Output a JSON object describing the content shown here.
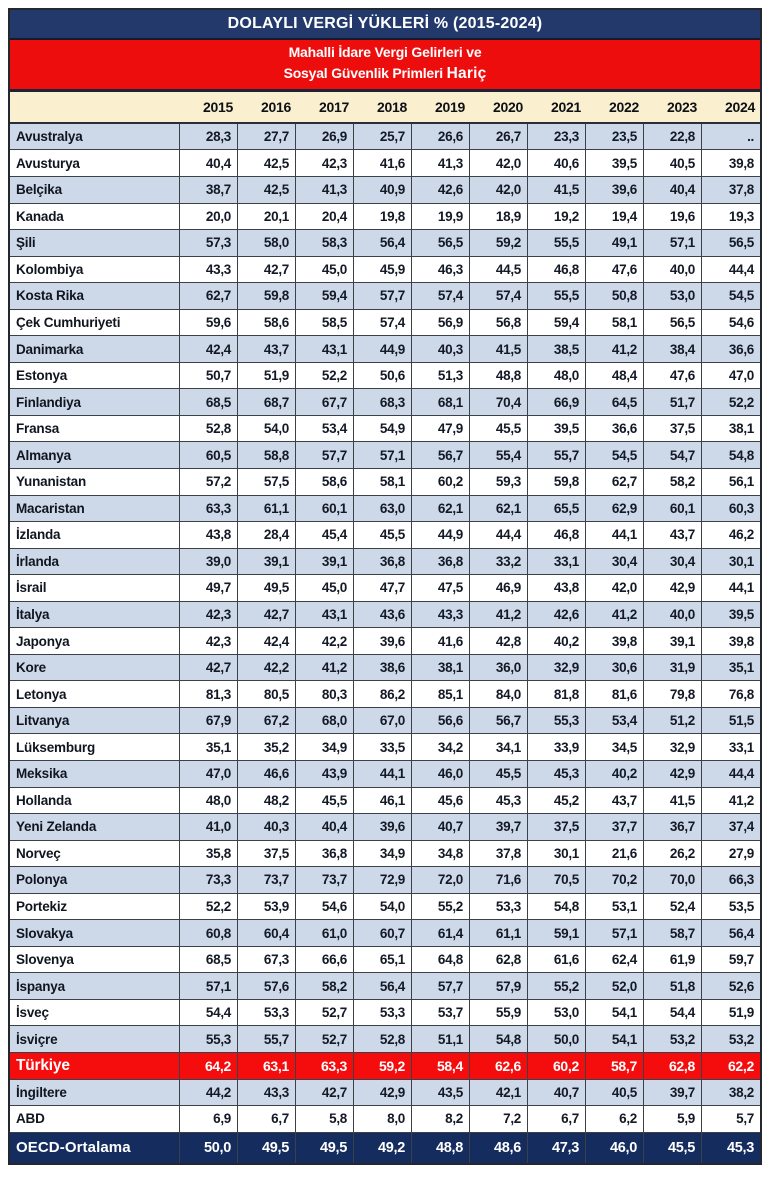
{
  "chart_data": {
    "type": "table",
    "title": "DOLAYLI VERGİ YÜKLERİ % (2015-2024)",
    "subtitle_line1": "Mahalli İdare Vergi Gelirleri ve",
    "subtitle_line2_prefix": "Sosyal Güvenlik Primleri",
    "subtitle_line2_emphasis": "Hariç",
    "columns": [
      "2015",
      "2016",
      "2017",
      "2018",
      "2019",
      "2020",
      "2021",
      "2022",
      "2023",
      "2024"
    ],
    "rows": [
      {
        "label": "Avustralya",
        "values": [
          "28,3",
          "27,7",
          "26,9",
          "25,7",
          "26,6",
          "26,7",
          "23,3",
          "23,5",
          "22,8",
          ".."
        ]
      },
      {
        "label": "Avusturya",
        "values": [
          "40,4",
          "42,5",
          "42,3",
          "41,6",
          "41,3",
          "42,0",
          "40,6",
          "39,5",
          "40,5",
          "39,8"
        ]
      },
      {
        "label": "Belçika",
        "values": [
          "38,7",
          "42,5",
          "41,3",
          "40,9",
          "42,6",
          "42,0",
          "41,5",
          "39,6",
          "40,4",
          "37,8"
        ]
      },
      {
        "label": "Kanada",
        "values": [
          "20,0",
          "20,1",
          "20,4",
          "19,8",
          "19,9",
          "18,9",
          "19,2",
          "19,4",
          "19,6",
          "19,3"
        ]
      },
      {
        "label": "Şili",
        "values": [
          "57,3",
          "58,0",
          "58,3",
          "56,4",
          "56,5",
          "59,2",
          "55,5",
          "49,1",
          "57,1",
          "56,5"
        ]
      },
      {
        "label": "Kolombiya",
        "values": [
          "43,3",
          "42,7",
          "45,0",
          "45,9",
          "46,3",
          "44,5",
          "46,8",
          "47,6",
          "40,0",
          "44,4"
        ]
      },
      {
        "label": "Kosta Rika",
        "values": [
          "62,7",
          "59,8",
          "59,4",
          "57,7",
          "57,4",
          "57,4",
          "55,5",
          "50,8",
          "53,0",
          "54,5"
        ]
      },
      {
        "label": "Çek Cumhuriyeti",
        "values": [
          "59,6",
          "58,6",
          "58,5",
          "57,4",
          "56,9",
          "56,8",
          "59,4",
          "58,1",
          "56,5",
          "54,6"
        ]
      },
      {
        "label": "Danimarka",
        "values": [
          "42,4",
          "43,7",
          "43,1",
          "44,9",
          "40,3",
          "41,5",
          "38,5",
          "41,2",
          "38,4",
          "36,6"
        ]
      },
      {
        "label": "Estonya",
        "values": [
          "50,7",
          "51,9",
          "52,2",
          "50,6",
          "51,3",
          "48,8",
          "48,0",
          "48,4",
          "47,6",
          "47,0"
        ]
      },
      {
        "label": "Finlandiya",
        "values": [
          "68,5",
          "68,7",
          "67,7",
          "68,3",
          "68,1",
          "70,4",
          "66,9",
          "64,5",
          "51,7",
          "52,2"
        ]
      },
      {
        "label": "Fransa",
        "values": [
          "52,8",
          "54,0",
          "53,4",
          "54,9",
          "47,9",
          "45,5",
          "39,5",
          "36,6",
          "37,5",
          "38,1"
        ]
      },
      {
        "label": "Almanya",
        "values": [
          "60,5",
          "58,8",
          "57,7",
          "57,1",
          "56,7",
          "55,4",
          "55,7",
          "54,5",
          "54,7",
          "54,8"
        ]
      },
      {
        "label": "Yunanistan",
        "values": [
          "57,2",
          "57,5",
          "58,6",
          "58,1",
          "60,2",
          "59,3",
          "59,8",
          "62,7",
          "58,2",
          "56,1"
        ]
      },
      {
        "label": "Macaristan",
        "values": [
          "63,3",
          "61,1",
          "60,1",
          "63,0",
          "62,1",
          "62,1",
          "65,5",
          "62,9",
          "60,1",
          "60,3"
        ]
      },
      {
        "label": "İzlanda",
        "values": [
          "43,8",
          "28,4",
          "45,4",
          "45,5",
          "44,9",
          "44,4",
          "46,8",
          "44,1",
          "43,7",
          "46,2"
        ]
      },
      {
        "label": "İrlanda",
        "values": [
          "39,0",
          "39,1",
          "39,1",
          "36,8",
          "36,8",
          "33,2",
          "33,1",
          "30,4",
          "30,4",
          "30,1"
        ]
      },
      {
        "label": "İsrail",
        "values": [
          "49,7",
          "49,5",
          "45,0",
          "47,7",
          "47,5",
          "46,9",
          "43,8",
          "42,0",
          "42,9",
          "44,1"
        ]
      },
      {
        "label": "İtalya",
        "values": [
          "42,3",
          "42,7",
          "43,1",
          "43,6",
          "43,3",
          "41,2",
          "42,6",
          "41,2",
          "40,0",
          "39,5"
        ]
      },
      {
        "label": "Japonya",
        "values": [
          "42,3",
          "42,4",
          "42,2",
          "39,6",
          "41,6",
          "42,8",
          "40,2",
          "39,8",
          "39,1",
          "39,8"
        ]
      },
      {
        "label": "Kore",
        "values": [
          "42,7",
          "42,2",
          "41,2",
          "38,6",
          "38,1",
          "36,0",
          "32,9",
          "30,6",
          "31,9",
          "35,1"
        ]
      },
      {
        "label": "Letonya",
        "values": [
          "81,3",
          "80,5",
          "80,3",
          "86,2",
          "85,1",
          "84,0",
          "81,8",
          "81,6",
          "79,8",
          "76,8"
        ]
      },
      {
        "label": "Litvanya",
        "values": [
          "67,9",
          "67,2",
          "68,0",
          "67,0",
          "56,6",
          "56,7",
          "55,3",
          "53,4",
          "51,2",
          "51,5"
        ]
      },
      {
        "label": "Lüksemburg",
        "values": [
          "35,1",
          "35,2",
          "34,9",
          "33,5",
          "34,2",
          "34,1",
          "33,9",
          "34,5",
          "32,9",
          "33,1"
        ]
      },
      {
        "label": "Meksika",
        "values": [
          "47,0",
          "46,6",
          "43,9",
          "44,1",
          "46,0",
          "45,5",
          "45,3",
          "40,2",
          "42,9",
          "44,4"
        ]
      },
      {
        "label": "Hollanda",
        "values": [
          "48,0",
          "48,2",
          "45,5",
          "46,1",
          "45,6",
          "45,3",
          "45,2",
          "43,7",
          "41,5",
          "41,2"
        ]
      },
      {
        "label": "Yeni Zelanda",
        "values": [
          "41,0",
          "40,3",
          "40,4",
          "39,6",
          "40,7",
          "39,7",
          "37,5",
          "37,7",
          "36,7",
          "37,4"
        ]
      },
      {
        "label": "Norveç",
        "values": [
          "35,8",
          "37,5",
          "36,8",
          "34,9",
          "34,8",
          "37,8",
          "30,1",
          "21,6",
          "26,2",
          "27,9"
        ]
      },
      {
        "label": "Polonya",
        "values": [
          "73,3",
          "73,7",
          "73,7",
          "72,9",
          "72,0",
          "71,6",
          "70,5",
          "70,2",
          "70,0",
          "66,3"
        ]
      },
      {
        "label": "Portekiz",
        "values": [
          "52,2",
          "53,9",
          "54,6",
          "54,0",
          "55,2",
          "53,3",
          "54,8",
          "53,1",
          "52,4",
          "53,5"
        ]
      },
      {
        "label": "Slovakya",
        "values": [
          "60,8",
          "60,4",
          "61,0",
          "60,7",
          "61,4",
          "61,1",
          "59,1",
          "57,1",
          "58,7",
          "56,4"
        ]
      },
      {
        "label": "Slovenya",
        "values": [
          "68,5",
          "67,3",
          "66,6",
          "65,1",
          "64,8",
          "62,8",
          "61,6",
          "62,4",
          "61,9",
          "59,7"
        ]
      },
      {
        "label": "İspanya",
        "values": [
          "57,1",
          "57,6",
          "58,2",
          "56,4",
          "57,7",
          "57,9",
          "55,2",
          "52,0",
          "51,8",
          "52,6"
        ]
      },
      {
        "label": "İsveç",
        "values": [
          "54,4",
          "53,3",
          "52,7",
          "53,3",
          "53,7",
          "55,9",
          "53,0",
          "54,1",
          "54,4",
          "51,9"
        ]
      },
      {
        "label": "İsviçre",
        "values": [
          "55,3",
          "55,7",
          "52,7",
          "52,8",
          "51,1",
          "54,8",
          "50,0",
          "54,1",
          "53,2",
          "53,2"
        ]
      },
      {
        "label": "Türkiye",
        "variant": "turkiye",
        "values": [
          "64,2",
          "63,1",
          "63,3",
          "59,2",
          "58,4",
          "62,6",
          "60,2",
          "58,7",
          "62,8",
          "62,2"
        ]
      },
      {
        "label": "İngiltere",
        "values": [
          "44,2",
          "43,3",
          "42,7",
          "42,9",
          "43,5",
          "42,1",
          "40,7",
          "40,5",
          "39,7",
          "38,2"
        ]
      },
      {
        "label": "ABD",
        "values": [
          "6,9",
          "6,7",
          "5,8",
          "8,0",
          "8,2",
          "7,2",
          "6,7",
          "6,2",
          "5,9",
          "5,7"
        ]
      },
      {
        "label": "OECD-Ortalama",
        "variant": "oecd",
        "values": [
          "50,0",
          "49,5",
          "49,5",
          "49,2",
          "48,8",
          "48,6",
          "47,3",
          "46,0",
          "45,5",
          "45,3"
        ]
      }
    ],
    "legend_position": "none",
    "grid": true
  },
  "colors": {
    "title_navy": "#23396b",
    "band_red": "#ee0d0d",
    "year_band_cream": "#faf0cf",
    "zebra_blue": "#cdd9e9",
    "turkiye_red": "#f50d0d",
    "oecd_navy": "#152c5f",
    "grid_border": "#3c4148"
  }
}
